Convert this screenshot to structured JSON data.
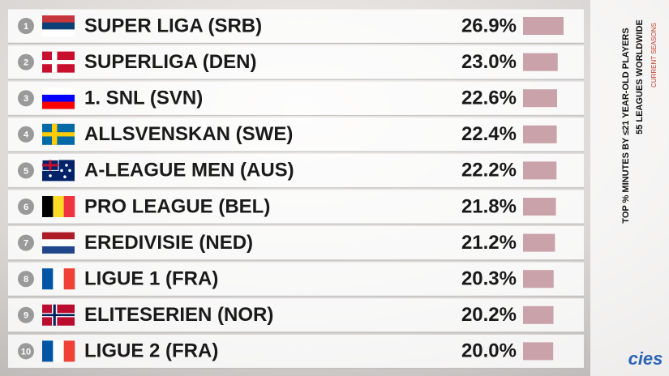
{
  "chart_data": {
    "type": "bar",
    "orientation": "horizontal",
    "title": "TOP % MINUTES BY ≤21 YEAR-OLD PLAYERS",
    "subtitle": "55 LEAGUES WORLDWIDE",
    "note": "CURRENT SEASONS",
    "logo": "cies",
    "ranks": [
      1,
      2,
      3,
      4,
      5,
      6,
      7,
      8,
      9,
      10
    ],
    "categories": [
      "SUPER LIGA (SRB)",
      "SUPERLIGA (DEN)",
      "1. SNL (SVN)",
      "ALLSVENSKAN (SWE)",
      "A-LEAGUE MEN (AUS)",
      "PRO LEAGUE (BEL)",
      "EREDIVISIE (NED)",
      "LIGUE 1 (FRA)",
      "ELITESERIEN (NOR)",
      "LIGUE 2 (FRA)"
    ],
    "values": [
      26.9,
      23.0,
      22.6,
      22.4,
      22.2,
      21.8,
      21.2,
      20.3,
      20.2,
      20.0
    ],
    "value_labels": [
      "26.9%",
      "23.0%",
      "22.6%",
      "22.4%",
      "22.2%",
      "21.8%",
      "21.2%",
      "20.3%",
      "20.2%",
      "20.0%"
    ],
    "color": "#c9a2aa"
  }
}
